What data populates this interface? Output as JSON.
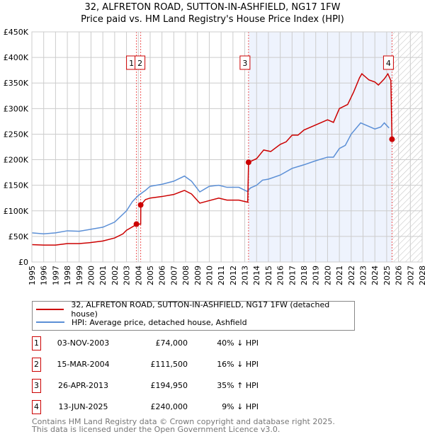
{
  "chart_data": {
    "type": "line",
    "title": "32, ALFRETON ROAD, SUTTON-IN-ASHFIELD, NG17 1FW",
    "subtitle": "Price paid vs. HM Land Registry's House Price Index (HPI)",
    "xlim": [
      1995,
      2028
    ],
    "ylim": [
      0,
      450000
    ],
    "y_ticks": [
      {
        "v": 0,
        "label": "£0"
      },
      {
        "v": 50000,
        "label": "£50K"
      },
      {
        "v": 100000,
        "label": "£100K"
      },
      {
        "v": 150000,
        "label": "£150K"
      },
      {
        "v": 200000,
        "label": "£200K"
      },
      {
        "v": 250000,
        "label": "£250K"
      },
      {
        "v": 300000,
        "label": "£300K"
      },
      {
        "v": 350000,
        "label": "£350K"
      },
      {
        "v": 400000,
        "label": "£400K"
      },
      {
        "v": 450000,
        "label": "£450K"
      }
    ],
    "x_ticks": [
      1995,
      1996,
      1997,
      1998,
      1999,
      2000,
      2001,
      2002,
      2003,
      2004,
      2005,
      2006,
      2007,
      2008,
      2009,
      2010,
      2011,
      2012,
      2013,
      2014,
      2015,
      2016,
      2017,
      2018,
      2019,
      2020,
      2021,
      2022,
      2023,
      2024,
      2025,
      2026,
      2027,
      2028
    ],
    "grid": true,
    "legend_placement": "below",
    "series": [
      {
        "name": "32, ALFRETON ROAD, SUTTON-IN-ASHFIELD, NG17 1FW (detached house)",
        "color": "#cc0000",
        "x": [
          1995,
          1996,
          1997,
          1998,
          1999,
          2000,
          2001,
          2002,
          2002.7,
          2003,
          2003.6,
          2003.84,
          2004.2,
          2004.21,
          2004.6,
          2005,
          2006,
          2007,
          2007.9,
          2008.5,
          2009.2,
          2010,
          2010.8,
          2011.5,
          2012.5,
          2013.25,
          2013.32,
          2014,
          2014.6,
          2015.2,
          2016,
          2016.5,
          2017,
          2017.5,
          2018,
          2019,
          2020,
          2020.5,
          2021,
          2021.7,
          2022.2,
          2022.7,
          2022.9,
          2023.5,
          2024,
          2024.3,
          2024.8,
          2025.1,
          2025.35,
          2025.45
        ],
        "y": [
          34000,
          33000,
          33000,
          36000,
          36000,
          38000,
          41000,
          47000,
          55000,
          62000,
          70000,
          74000,
          74000,
          111500,
          122000,
          125000,
          128000,
          132000,
          140000,
          133000,
          115000,
          120000,
          125000,
          121000,
          121000,
          117000,
          194950,
          202000,
          219000,
          216000,
          230000,
          235000,
          248000,
          248000,
          258000,
          268000,
          278000,
          273000,
          300000,
          308000,
          332000,
          360000,
          368000,
          356000,
          352000,
          346000,
          358000,
          368000,
          355000,
          240000
        ]
      },
      {
        "name": "HPI: Average price, detached house, Ashfield",
        "color": "#5b8fd6",
        "x": [
          1995,
          1996,
          1997,
          1998,
          1999,
          2000,
          2001,
          2002,
          2003,
          2003.5,
          2004,
          2004.6,
          2005,
          2006,
          2007,
          2007.9,
          2008.5,
          2009.2,
          2010,
          2010.8,
          2011.5,
          2012.5,
          2013.2,
          2013.5,
          2014,
          2014.5,
          2015,
          2016,
          2017,
          2018,
          2019,
          2020,
          2020.5,
          2021,
          2021.5,
          2022,
          2022.8,
          2023.5,
          2024,
          2024.5,
          2024.8,
          2025.2
        ],
        "y": [
          57000,
          55000,
          57000,
          61000,
          60000,
          64000,
          68000,
          78000,
          100000,
          118000,
          130000,
          140000,
          148000,
          152000,
          158000,
          168000,
          158000,
          137000,
          148000,
          150000,
          146000,
          146000,
          138000,
          145000,
          150000,
          160000,
          162000,
          170000,
          183000,
          190000,
          198000,
          205000,
          205000,
          222000,
          228000,
          250000,
          272000,
          265000,
          260000,
          264000,
          272000,
          262000
        ]
      }
    ],
    "sales": [
      {
        "n": "1",
        "date": "03-NOV-2003",
        "x": 2003.84,
        "price_value": 74000,
        "price": "£74,000",
        "hpi": "40% ↓ HPI"
      },
      {
        "n": "2",
        "date": "15-MAR-2004",
        "x": 2004.2,
        "price_value": 111500,
        "price": "£111,500",
        "hpi": "16% ↓ HPI"
      },
      {
        "n": "3",
        "date": "26-APR-2013",
        "x": 2013.32,
        "price_value": 194950,
        "price": "£194,950",
        "hpi": "35% ↑ HPI"
      },
      {
        "n": "4",
        "date": "13-JUN-2025",
        "x": 2025.45,
        "price_value": 240000,
        "price": "£240,000",
        "hpi": "9% ↓ HPI"
      }
    ]
  },
  "footer": {
    "line1": "Contains HM Land Registry data © Crown copyright and database right 2025.",
    "line2": "This data is licensed under the Open Government Licence v3.0."
  }
}
